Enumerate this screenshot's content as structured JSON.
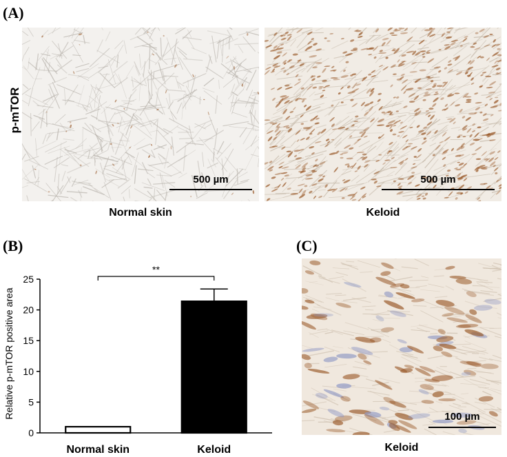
{
  "panels": {
    "a": {
      "label": "(A)",
      "row_label": "p-mTOR",
      "images": [
        {
          "caption": "Normal skin",
          "scale": "500 µm",
          "stain": "sparse-brown"
        },
        {
          "caption": "Keloid",
          "scale": "500 µm",
          "stain": "dense-brown"
        }
      ]
    },
    "b": {
      "label": "(B)"
    },
    "c": {
      "label": "(C)",
      "caption": "Keloid",
      "scale": "100 µm"
    }
  },
  "chart_data": {
    "type": "bar",
    "categories": [
      "Normal skin",
      "Keloid"
    ],
    "values": [
      1.0,
      21.4
    ],
    "error_upper": [
      0,
      2.0
    ],
    "ylabel": "Relative p-mTOR positive area",
    "ylim": [
      0,
      25
    ],
    "yticks": [
      0,
      5,
      10,
      15,
      20,
      25
    ],
    "significance": {
      "between": [
        "Normal skin",
        "Keloid"
      ],
      "label": "**"
    },
    "bar_fills": [
      "#ffffff",
      "#000000"
    ],
    "grid": false
  },
  "colors": {
    "stain_brown": "#9a5a2a",
    "background_tissue": "#f4f2ee",
    "counterstain_blue": "#8f98c4"
  }
}
